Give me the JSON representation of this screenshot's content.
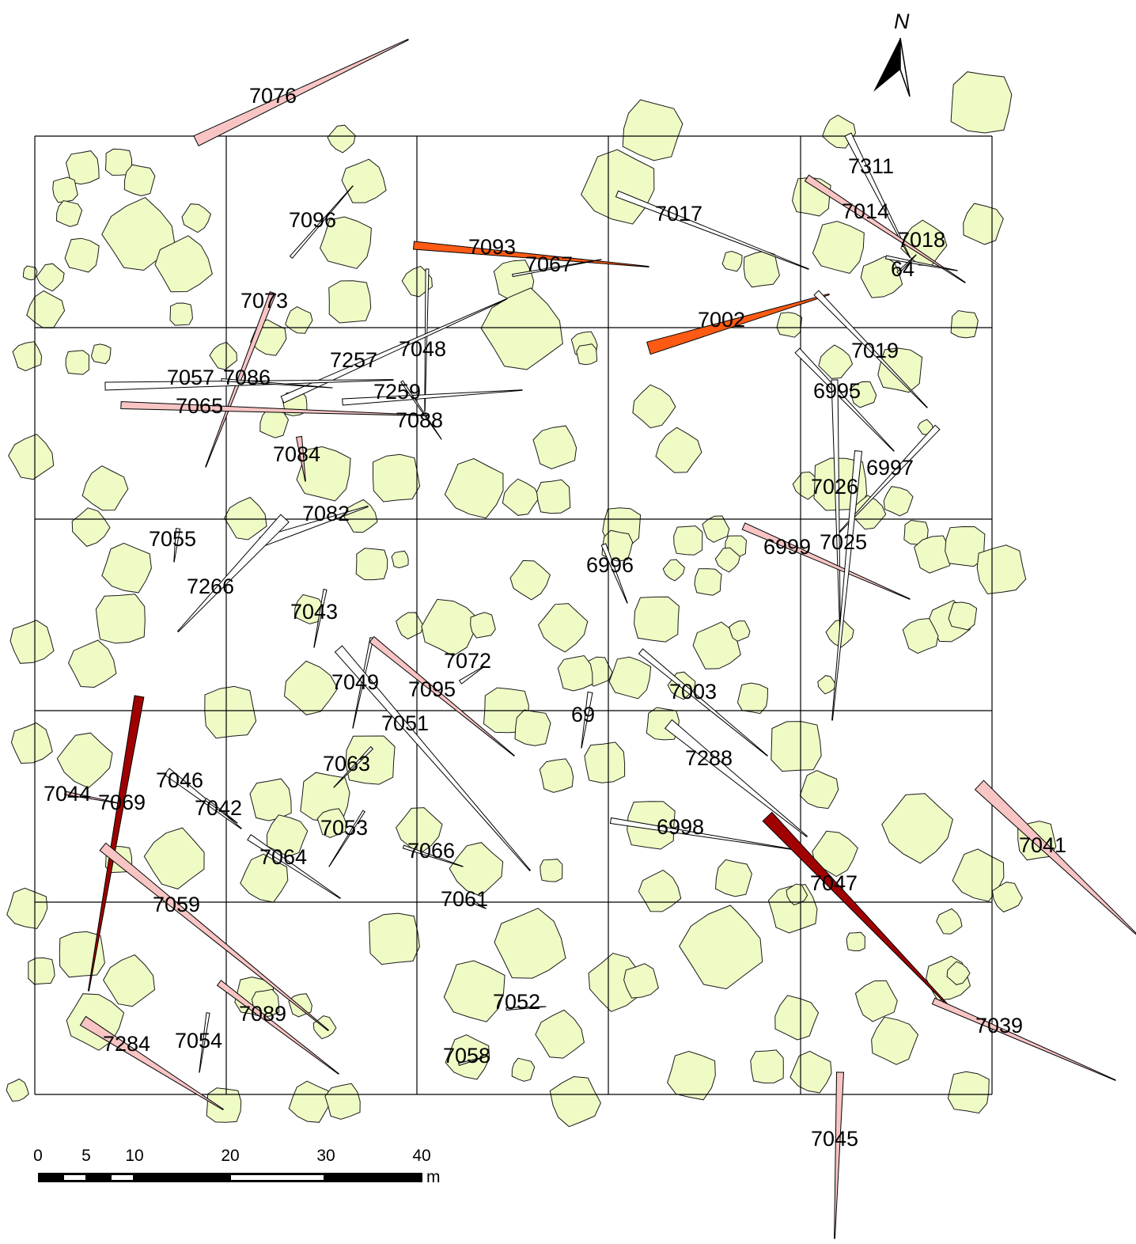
{
  "north_arrow": {
    "letter": "N"
  },
  "scale_bar": {
    "ticks": [
      "0",
      "5",
      "10",
      "20",
      "30",
      "40"
    ],
    "unit": "m",
    "tick_values": [
      0,
      5,
      10,
      20,
      30,
      40
    ]
  },
  "fill_colors": {
    "crown": "#eefbc5",
    "white_stem": "#ffffff",
    "light_pink": "#f8c4c4",
    "orange": "#ff5a14",
    "dark_red": "#a00000"
  },
  "trees": [
    {
      "label": "7076",
      "color": "pink"
    },
    {
      "label": "7096",
      "color": "white"
    },
    {
      "label": "7093",
      "color": "orange"
    },
    {
      "label": "7067",
      "color": "white"
    },
    {
      "label": "7017",
      "color": "white"
    },
    {
      "label": "7311",
      "color": "white"
    },
    {
      "label": "7014",
      "color": "pink"
    },
    {
      "label": "7018",
      "color": "white"
    },
    {
      "label": "64",
      "color": "white"
    },
    {
      "label": "7073",
      "color": "pink"
    },
    {
      "label": "7002",
      "color": "orange"
    },
    {
      "label": "7048",
      "color": "white"
    },
    {
      "label": "7257",
      "color": "white"
    },
    {
      "label": "7057",
      "color": "white"
    },
    {
      "label": "7086",
      "color": "white"
    },
    {
      "label": "7259",
      "color": "white"
    },
    {
      "label": "7065",
      "color": "pink"
    },
    {
      "label": "7088",
      "color": "white"
    },
    {
      "label": "7019",
      "color": "white"
    },
    {
      "label": "6995",
      "color": "white"
    },
    {
      "label": "7084",
      "color": "pink"
    },
    {
      "label": "6997",
      "color": "white"
    },
    {
      "label": "7026",
      "color": "white"
    },
    {
      "label": "7082",
      "color": "white"
    },
    {
      "label": "7055",
      "color": "white"
    },
    {
      "label": "6999",
      "color": "pink"
    },
    {
      "label": "7025",
      "color": "white"
    },
    {
      "label": "6996",
      "color": "white"
    },
    {
      "label": "7266",
      "color": "white"
    },
    {
      "label": "7043",
      "color": "white"
    },
    {
      "label": "7072",
      "color": "white"
    },
    {
      "label": "7049",
      "color": "white"
    },
    {
      "label": "7095",
      "color": "pink"
    },
    {
      "label": "7003",
      "color": "white"
    },
    {
      "label": "69",
      "color": "white"
    },
    {
      "label": "7051",
      "color": "white"
    },
    {
      "label": "7288",
      "color": "white"
    },
    {
      "label": "7063",
      "color": "white"
    },
    {
      "label": "7046",
      "color": "white"
    },
    {
      "label": "7044",
      "color": "pink"
    },
    {
      "label": "7069",
      "color": "darkred"
    },
    {
      "label": "7042",
      "color": "white"
    },
    {
      "label": "7053",
      "color": "white"
    },
    {
      "label": "6998",
      "color": "white"
    },
    {
      "label": "7041",
      "color": "pink"
    },
    {
      "label": "7066",
      "color": "white"
    },
    {
      "label": "7064",
      "color": "white"
    },
    {
      "label": "7047",
      "color": "darkred"
    },
    {
      "label": "7061",
      "color": "white"
    },
    {
      "label": "7059",
      "color": "pink"
    },
    {
      "label": "7052",
      "color": "white"
    },
    {
      "label": "7039",
      "color": "pink"
    },
    {
      "label": "7089",
      "color": "pink"
    },
    {
      "label": "7284",
      "color": "pink"
    },
    {
      "label": "7054",
      "color": "white"
    },
    {
      "label": "7058",
      "color": "white"
    },
    {
      "label": "7045",
      "color": "pink"
    }
  ]
}
